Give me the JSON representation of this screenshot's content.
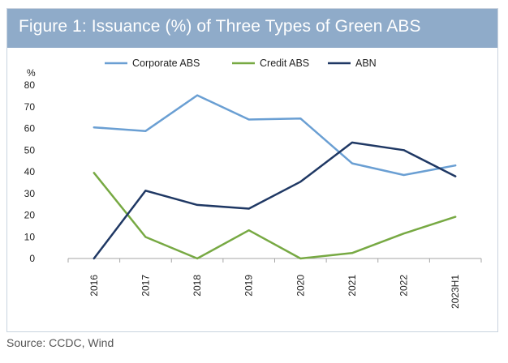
{
  "figure_title": "Figure 1: Issuance (%) of Three Types of Green ABS",
  "source": "Source: CCDC, Wind",
  "colors": {
    "banner": "#8fabc9",
    "corporate": "#6a9fd3",
    "credit": "#77a943",
    "abn": "#1f3864",
    "axis": "#a6a6a6",
    "text": "#222222"
  },
  "chart_data": {
    "type": "line",
    "title": "Figure 1: Issuance (%) of Three Types of Green ABS",
    "ylabel": "%",
    "xlabel": "",
    "categories": [
      "2016",
      "2017",
      "2018",
      "2019",
      "2020",
      "2021",
      "2022",
      "2023H1"
    ],
    "ylim": [
      0,
      80
    ],
    "yticks": [
      "0",
      "10",
      "20",
      "30",
      "40",
      "50",
      "60",
      "70",
      "80"
    ],
    "grid": false,
    "legend_position": "top-center",
    "series": [
      {
        "name": "Corporate ABS",
        "color": "#6a9fd3",
        "values": [
          60.5,
          58.8,
          75.3,
          64.1,
          64.6,
          43.9,
          38.5,
          42.9
        ]
      },
      {
        "name": "Credit ABS",
        "color": "#77a943",
        "values": [
          39.5,
          9.9,
          0.0,
          13.0,
          0.0,
          2.5,
          11.5,
          19.2
        ]
      },
      {
        "name": "ABN",
        "color": "#1f3864",
        "values": [
          0.0,
          31.3,
          24.7,
          23.0,
          35.4,
          53.5,
          50.0,
          37.9
        ]
      }
    ]
  }
}
